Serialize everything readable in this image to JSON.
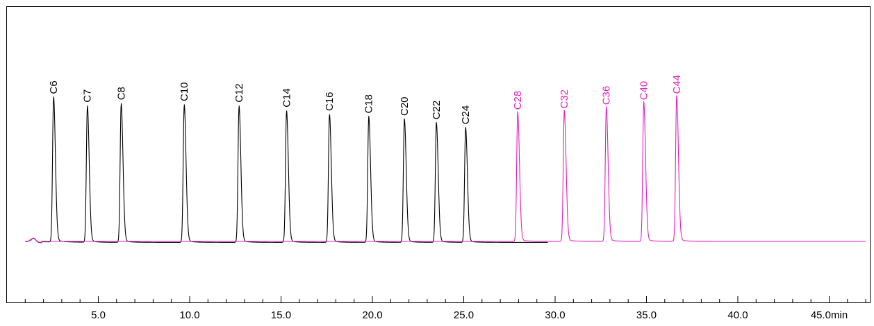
{
  "chart_data": {
    "type": "line",
    "title": "",
    "xlabel": "",
    "ylabel": "",
    "x_unit": "min",
    "xlim": [
      0.0,
      47.0
    ],
    "ylim": [
      -100,
      1000
    ],
    "grid": false,
    "x_ticks": [
      {
        "value": 5.0,
        "label": "5.0"
      },
      {
        "value": 10.0,
        "label": "10.0"
      },
      {
        "value": 15.0,
        "label": "15.0"
      },
      {
        "value": 20.0,
        "label": "20.0"
      },
      {
        "value": 25.0,
        "label": "25.0"
      },
      {
        "value": 30.0,
        "label": "30.0"
      },
      {
        "value": 35.0,
        "label": "35.0"
      },
      {
        "value": 40.0,
        "label": "40.0"
      },
      {
        "value": 45.0,
        "label": "45.0min"
      }
    ],
    "colors": {
      "series_1": "#000000",
      "series_2": "#e020c0"
    },
    "series": [
      {
        "color": "#000000",
        "x_start": 0.0,
        "x_end": 29.6,
        "baseline_drift": -4,
        "peaks": [
          {
            "label": "C6",
            "x": 2.55,
            "height": 590
          },
          {
            "label": "C7",
            "x": 4.4,
            "height": 555
          },
          {
            "label": "C8",
            "x": 6.25,
            "height": 565
          },
          {
            "label": "C10",
            "x": 9.7,
            "height": 560
          },
          {
            "label": "C12",
            "x": 12.7,
            "height": 555
          },
          {
            "label": "C14",
            "x": 15.3,
            "height": 535
          },
          {
            "label": "C16",
            "x": 17.65,
            "height": 520
          },
          {
            "label": "C18",
            "x": 19.8,
            "height": 510
          },
          {
            "label": "C20",
            "x": 21.75,
            "height": 500
          },
          {
            "label": "C22",
            "x": 23.5,
            "height": 485
          },
          {
            "label": "C24",
            "x": 25.1,
            "height": 465
          }
        ]
      },
      {
        "color": "#e020c0",
        "x_start": 0.0,
        "x_end": 47.0,
        "baseline_drift": 0,
        "peaks": [
          {
            "label": "C28",
            "x": 27.95,
            "height": 525
          },
          {
            "label": "C32",
            "x": 30.5,
            "height": 530
          },
          {
            "label": "C36",
            "x": 32.8,
            "height": 545
          },
          {
            "label": "C40",
            "x": 34.85,
            "height": 565
          },
          {
            "label": "C44",
            "x": 36.65,
            "height": 590
          }
        ]
      }
    ]
  }
}
